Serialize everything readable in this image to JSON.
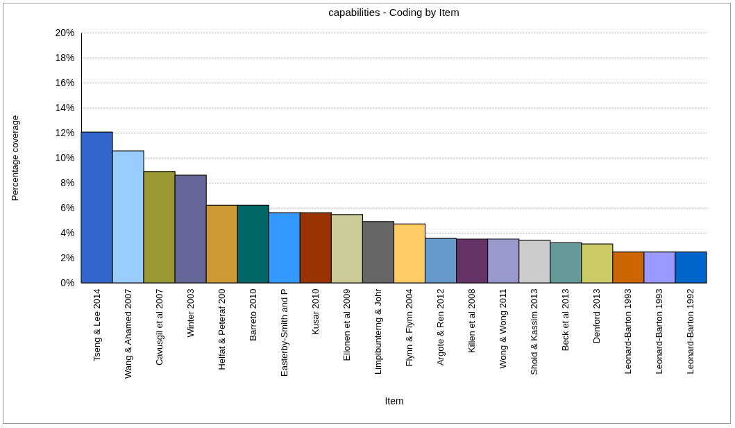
{
  "chart_data": {
    "type": "bar",
    "title": "capabilities - Coding by Item",
    "xlabel": "Item",
    "ylabel": "Percentage coverage",
    "categories": [
      "Tseng & Lee 2014",
      "Wang & Ahamed 2007",
      "Cavusgil et al 2007",
      "Winter 2003",
      "Helfat & Peteraf 200",
      "Barreto 2010",
      "Easterby-Smith and P",
      "Kusar 2010",
      "Ellonen et al 2009",
      "Limpibunterng & Johr",
      "Flynn & Flynn 2004",
      "Argote & Ren 2012",
      "Killen et al 2008",
      "Wong & Wong 2011",
      "Shoid & Kassim 2013",
      "Beck et al 2013",
      "Denford 2013",
      "Leonard-Barton 1993",
      "Leonard-Barton 1993",
      "Leonard-Barton 1992"
    ],
    "values": [
      12.05,
      10.55,
      8.9,
      8.6,
      6.2,
      6.2,
      5.6,
      5.6,
      5.45,
      4.9,
      4.7,
      3.55,
      3.5,
      3.5,
      3.4,
      3.2,
      3.1,
      2.47,
      2.47,
      2.47
    ],
    "colors": [
      "#3366cc",
      "#99ccff",
      "#999933",
      "#666699",
      "#cc9933",
      "#006666",
      "#3399ff",
      "#993300",
      "#cccc99",
      "#666666",
      "#ffcc66",
      "#6699cc",
      "#663366",
      "#9999cc",
      "#cccccc",
      "#669999",
      "#cccc66",
      "#cc6600",
      "#9999ff",
      "#0066cc"
    ],
    "ylim": [
      0,
      20
    ],
    "yticks": [
      {
        "value": 0,
        "label": "0%"
      },
      {
        "value": 2,
        "label": "2%"
      },
      {
        "value": 4,
        "label": "4%"
      },
      {
        "value": 6,
        "label": "6%"
      },
      {
        "value": 8,
        "label": "8%"
      },
      {
        "value": 10,
        "label": "10%"
      },
      {
        "value": 12,
        "label": "12%"
      },
      {
        "value": 14,
        "label": "14%"
      },
      {
        "value": 16,
        "label": "16%"
      },
      {
        "value": 18,
        "label": "18%"
      },
      {
        "value": 20,
        "label": "20%"
      }
    ],
    "grid": "y"
  }
}
